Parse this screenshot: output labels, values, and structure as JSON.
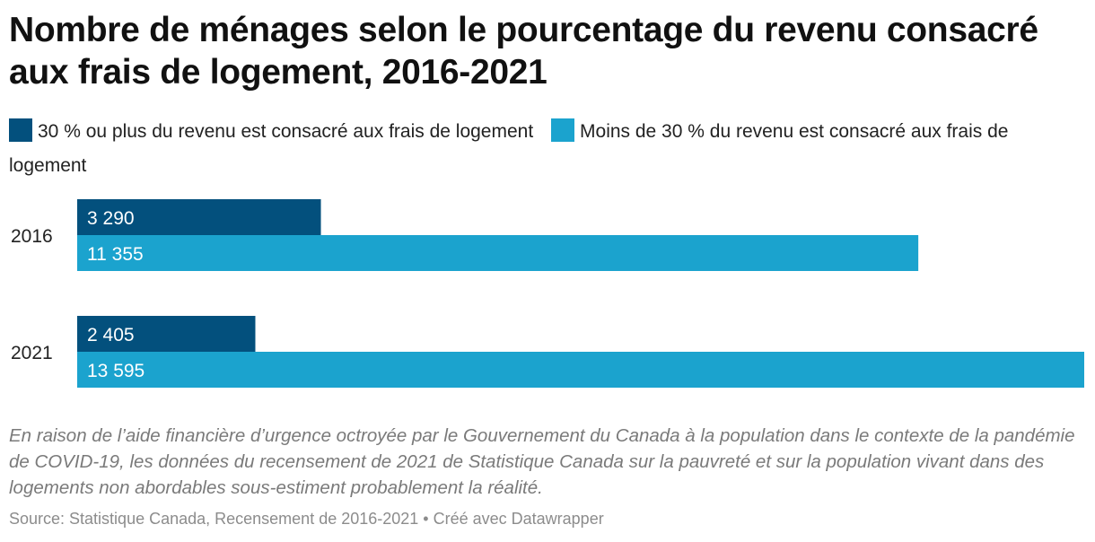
{
  "chart": {
    "title": "Nombre de ménages selon le pourcentage du revenu consacré aux frais de logement, 2016-2021",
    "note": "En raison de l’aide financière d’urgence octroyée par le Gouvernement du Canada à la population dans le contexte de la pandémie de COVID-19, les données du recensement de 2021 de Statistique Canada sur la pauvreté et sur la population vivant dans des logements non abordables sous-estiment probablement la réalité.",
    "source": "Source: Statistique Canada, Recensement de 2016-2021 • Créé avec Datawrapper"
  },
  "chart_data": {
    "type": "bar",
    "orientation": "horizontal",
    "title": "Nombre de ménages selon le pourcentage du revenu consacré aux frais de logement, 2016-2021",
    "categories": [
      "2016",
      "2021"
    ],
    "series": [
      {
        "name": "30 % ou plus du revenu est consacré aux frais de logement",
        "color": "#03507d",
        "values": [
          3290,
          2405
        ],
        "labels": [
          "3 290",
          "2 405"
        ]
      },
      {
        "name": "Moins de 30 % du revenu est consacré aux frais de logement",
        "color": "#1ba3ce",
        "values": [
          11355,
          13595
        ],
        "labels": [
          "11 355",
          "13 595"
        ]
      }
    ],
    "xlim": [
      0,
      13595
    ],
    "grid": false,
    "legend_position": "top"
  }
}
